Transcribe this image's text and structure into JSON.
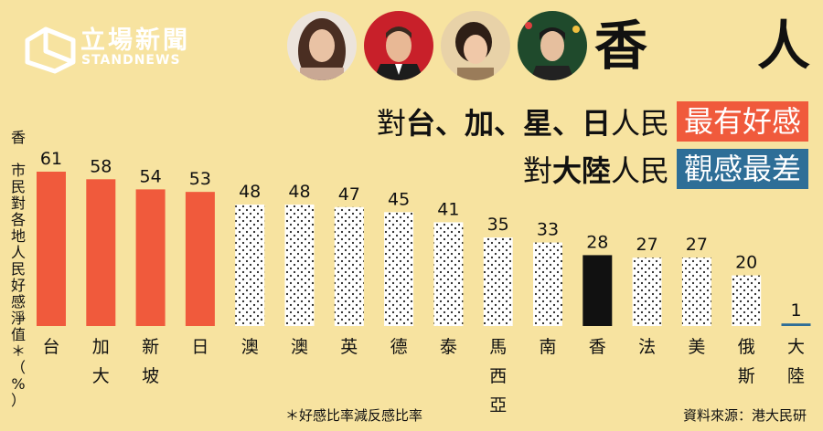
{
  "brand": {
    "name_cn": "立場新聞",
    "name_en": "STANDNEWS"
  },
  "title": {
    "char1": "香",
    "char2": "人"
  },
  "headline1": {
    "prefix": "對",
    "bold": "台、加、星、日",
    "suffix": "人民",
    "highlight": "最有好感",
    "color": "#f05a3c"
  },
  "headline2": {
    "prefix": "對",
    "bold": "大陸",
    "suffix": "人民",
    "highlight": "觀感最差",
    "color": "#2e6e97"
  },
  "y_label_char": "香",
  "y_label": "市民對各地人民好感淨值＊（%）",
  "footnote": "＊好感比率減反感比率",
  "source": "資料來源：港大民研",
  "photos": [
    {
      "icon": "woman-long-hair-portrait"
    },
    {
      "icon": "man-suit-red-portrait"
    },
    {
      "icon": "woman-short-hair-portrait"
    },
    {
      "icon": "man-tree-portrait"
    }
  ],
  "chart_data": {
    "type": "bar",
    "categories": [
      "台",
      "加大",
      "新坡",
      "日",
      "澳",
      "澳",
      "英",
      "德",
      "泰",
      "馬西亞",
      "南",
      "香",
      "法",
      "美",
      "俄斯",
      "大陸"
    ],
    "category_lines": [
      [
        "台"
      ],
      [
        "加",
        "大"
      ],
      [
        "新",
        "坡"
      ],
      [
        "日"
      ],
      [
        "澳"
      ],
      [
        "澳"
      ],
      [
        "英"
      ],
      [
        "德"
      ],
      [
        "泰"
      ],
      [
        "馬",
        "西",
        "亞"
      ],
      [
        "南"
      ],
      [
        "香"
      ],
      [
        "法"
      ],
      [
        "美"
      ],
      [
        "俄",
        "斯"
      ],
      [
        "大",
        "陸"
      ]
    ],
    "values": [
      61,
      58,
      54,
      53,
      48,
      48,
      47,
      45,
      41,
      35,
      33,
      28,
      27,
      27,
      20,
      1
    ],
    "styles": [
      "red",
      "red",
      "red",
      "red",
      "dots",
      "dots",
      "dots",
      "dots",
      "dots",
      "dots",
      "dots",
      "black",
      "dots",
      "dots",
      "dots",
      "blue"
    ],
    "colors": {
      "red": "#f05a3c",
      "black": "#111111",
      "blue": "#2e6e97",
      "dots": "#ffffff"
    },
    "ylim": [
      0,
      65
    ]
  }
}
